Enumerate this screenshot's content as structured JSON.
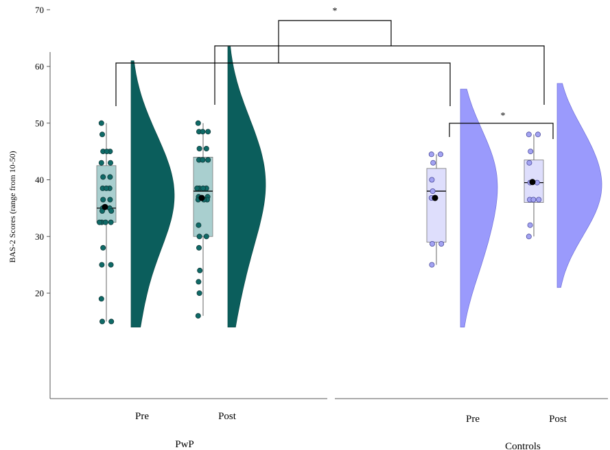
{
  "chart_data": {
    "type": "raincloud",
    "ylabel": "BAS-2 Scores (range from 10-50)",
    "ylim": [
      12,
      73
    ],
    "yticks": [
      20,
      30,
      40,
      50,
      60,
      70
    ],
    "colors": {
      "pwp_fill": "#0b5e5c",
      "pwp_box": "#a9cfcf",
      "pwp_point": "#0f6a67",
      "controls_fill": "#9a9afc",
      "controls_box": "#dedefc",
      "controls_point": "#a3a3f2",
      "axis": "#555555"
    },
    "groups": [
      {
        "name": "PwP",
        "conditions": [
          {
            "label": "Pre",
            "values": [
              50,
              48,
              45,
              45,
              45,
              43,
              43,
              40.5,
              40.5,
              38.5,
              38.5,
              38.5,
              36.5,
              36.5,
              35,
              35,
              34.5,
              34.5,
              32.5,
              32.5,
              32.5,
              32.5,
              28,
              25,
              25,
              19,
              15,
              15
            ],
            "box": {
              "q1": 32.5,
              "median": 35,
              "q3": 42.5,
              "whisker_low": 15,
              "whisker_high": 50
            },
            "mean": 35.2,
            "density": {
              "min": 14,
              "max": 61,
              "peak_at": 37
            }
          },
          {
            "label": "Post",
            "values": [
              50,
              48.5,
              48.5,
              48.5,
              45.5,
              45.5,
              43.5,
              43.5,
              43.5,
              38.5,
              38.5,
              38.5,
              38.5,
              37,
              37,
              36.5,
              36.5,
              36.5,
              32,
              30,
              30,
              28,
              24,
              22,
              20,
              16
            ],
            "box": {
              "q1": 30,
              "median": 38,
              "q3": 44,
              "whisker_low": 16,
              "whisker_high": 50
            },
            "mean": 36.8,
            "density": {
              "min": 14,
              "max": 63.5,
              "peak_at": 39
            }
          }
        ]
      },
      {
        "name": "Controls",
        "conditions": [
          {
            "label": "Pre",
            "values": [
              44.5,
              44.5,
              43,
              40,
              38,
              36.8,
              28.7,
              28.7,
              25
            ],
            "box": {
              "q1": 29,
              "median": 38,
              "q3": 42,
              "whisker_low": 25,
              "whisker_high": 44.5
            },
            "mean": 36.8,
            "density": {
              "min": 14,
              "max": 56,
              "peak_at": 38.5
            }
          },
          {
            "label": "Post",
            "values": [
              48,
              48,
              45,
              43,
              39.5,
              39.5,
              36.5,
              36.5,
              36.5,
              32,
              30
            ],
            "box": {
              "q1": 36,
              "median": 39.5,
              "q3": 43.5,
              "whisker_low": 30,
              "whisker_high": 48
            },
            "mean": 39.6,
            "density": {
              "min": 21,
              "max": 57,
              "peak_at": 39.5
            }
          }
        ]
      }
    ],
    "significance": [
      {
        "label": "*",
        "between": "PwP vs Controls"
      },
      {
        "label": "*",
        "between": "Controls Pre vs Controls Post"
      }
    ]
  }
}
